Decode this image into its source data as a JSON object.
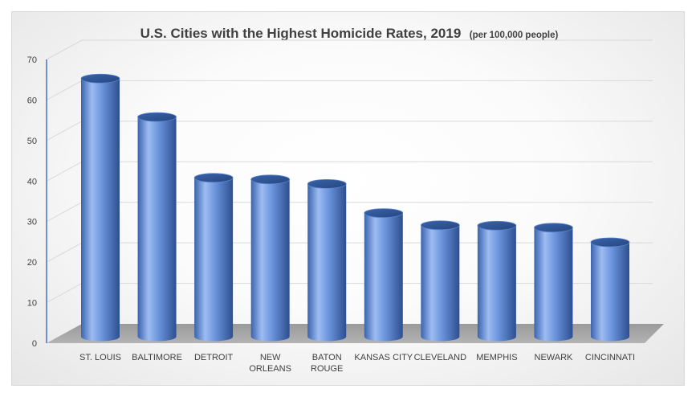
{
  "chart_data": {
    "type": "bar",
    "title": "U.S. Cities with the Highest Homicide Rates, 2019",
    "subtitle": "(per 100,000 people)",
    "xlabel": "",
    "ylabel": "",
    "categories": [
      "ST. LOUIS",
      "BALTIMORE",
      "DETROIT",
      "NEW ORLEANS",
      "BATON ROUGE",
      "KANSAS CITY",
      "CLEVELAND",
      "MEMPHIS",
      "NEWARK",
      "CINCINNATI"
    ],
    "category_lines": [
      [
        "ST. LOUIS"
      ],
      [
        "BALTIMORE"
      ],
      [
        "DETROIT"
      ],
      [
        "NEW",
        "ORLEANS"
      ],
      [
        "BATON",
        "ROUGE"
      ],
      [
        "KANSAS CITY"
      ],
      [
        "CLEVELAND"
      ],
      [
        "MEMPHIS"
      ],
      [
        "NEWARK"
      ],
      [
        "CINCINNATI"
      ]
    ],
    "values": [
      64.5,
      55,
      40,
      39.6,
      38.5,
      31.3,
      28.3,
      28.2,
      27.7,
      24.1
    ],
    "ylim": [
      0,
      70
    ],
    "yticks": [
      0,
      10,
      20,
      30,
      40,
      50,
      60,
      70
    ],
    "ytick_labels": [
      "0",
      "10",
      "20",
      "30",
      "40",
      "50",
      "60",
      "70"
    ],
    "grid": true,
    "legend": "none",
    "style": "3d-cylinder",
    "colors": {
      "bar": "#4472c4",
      "bar_light": "#9dbcf2",
      "bar_dark": "#2d4f8f",
      "floor": "#a6a6a6",
      "axis": "#4472c4",
      "grid": "#d9d9d9",
      "text": "#404040"
    }
  }
}
